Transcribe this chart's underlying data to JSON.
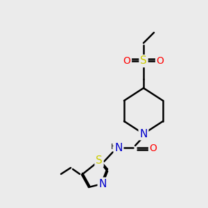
{
  "bg_color": "#ebebeb",
  "atom_colors": {
    "C": "#000000",
    "N": "#0000cc",
    "O": "#ff0000",
    "S": "#cccc00",
    "H": "#000000"
  },
  "bond_color": "#000000",
  "bond_width": 1.8,
  "figsize": [
    3.0,
    3.0
  ],
  "dpi": 100,
  "scale": 1.0
}
